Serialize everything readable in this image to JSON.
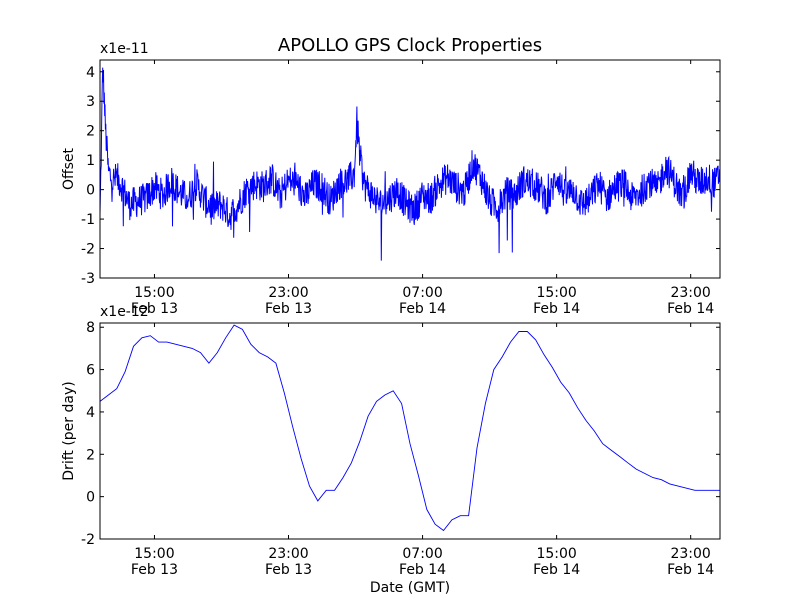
{
  "figure_title": "APOLLO GPS Clock Properties",
  "chart_data": [
    {
      "type": "line",
      "title": "APOLLO GPS Clock Properties",
      "ylabel": "Offset",
      "xlabel": "",
      "scale_note": "x1e-11",
      "xlim": [
        "Feb 13 11:45",
        "Feb 15 00:45"
      ],
      "ylim": [
        -3,
        4.4
      ],
      "yticks": [
        -3,
        -2,
        -1,
        0,
        1,
        2,
        3,
        4
      ],
      "yticklabels": [
        "-3",
        "-2",
        "-1",
        "0",
        "1",
        "2",
        "3",
        "4"
      ],
      "xticks": [
        {
          "time": "Feb 13 15:00",
          "label1": "15:00",
          "label2": "Feb 13"
        },
        {
          "time": "Feb 13 23:00",
          "label1": "23:00",
          "label2": "Feb 13"
        },
        {
          "time": "Feb 14 07:00",
          "label1": "07:00",
          "label2": "Feb 14"
        },
        {
          "time": "Feb 14 15:00",
          "label1": "15:00",
          "label2": "Feb 14"
        },
        {
          "time": "Feb 14 23:00",
          "label1": "23:00",
          "label2": "Feb 14"
        }
      ],
      "grid": false,
      "color": "#0000ff",
      "series": [
        {
          "x": [
            "Feb 13 11:45",
            "Feb 13 11:55",
            "Feb 13 12:05",
            "Feb 13 12:15",
            "Feb 13 12:30",
            "Feb 13 12:45",
            "Feb 13 13:00",
            "Feb 13 13:30",
            "Feb 13 14:00",
            "Feb 13 14:30",
            "Feb 13 15:00",
            "Feb 13 15:30",
            "Feb 13 16:00",
            "Feb 13 16:30",
            "Feb 13 17:00",
            "Feb 13 17:30",
            "Feb 13 18:00",
            "Feb 13 18:30",
            "Feb 13 19:00",
            "Feb 13 19:30",
            "Feb 13 20:00",
            "Feb 13 20:30",
            "Feb 13 21:00",
            "Feb 13 21:30",
            "Feb 13 22:00",
            "Feb 13 22:30",
            "Feb 13 23:00",
            "Feb 13 23:30",
            "Feb 14 00:00",
            "Feb 14 00:30",
            "Feb 14 01:00",
            "Feb 14 01:30",
            "Feb 14 02:00",
            "Feb 14 02:30",
            "Feb 14 02:55",
            "Feb 14 03:05",
            "Feb 14 03:15",
            "Feb 14 03:30",
            "Feb 14 04:00",
            "Feb 14 04:30",
            "Feb 14 05:00",
            "Feb 14 05:30",
            "Feb 14 06:00",
            "Feb 14 06:30",
            "Feb 14 07:00",
            "Feb 14 07:30",
            "Feb 14 08:00",
            "Feb 14 08:30",
            "Feb 14 09:00",
            "Feb 14 09:30",
            "Feb 14 10:00",
            "Feb 14 10:30",
            "Feb 14 11:00",
            "Feb 14 11:30",
            "Feb 14 12:00",
            "Feb 14 12:30",
            "Feb 14 13:00",
            "Feb 14 13:30",
            "Feb 14 14:00",
            "Feb 14 14:30",
            "Feb 14 15:00",
            "Feb 14 15:30",
            "Feb 14 16:00",
            "Feb 14 16:30",
            "Feb 14 17:00",
            "Feb 14 17:30",
            "Feb 14 18:00",
            "Feb 14 18:30",
            "Feb 14 19:00",
            "Feb 14 19:30",
            "Feb 14 20:00",
            "Feb 14 20:30",
            "Feb 14 21:00",
            "Feb 14 21:30",
            "Feb 14 22:00",
            "Feb 14 22:30",
            "Feb 14 23:00",
            "Feb 14 23:30",
            "Feb 15 00:00",
            "Feb 15 00:30",
            "Feb 15 00:45"
          ],
          "y": [
            -1.0,
            4.2,
            2.0,
            0.6,
            0.3,
            0.4,
            0.2,
            -0.5,
            -0.4,
            -0.3,
            0.1,
            -0.2,
            0.3,
            -0.1,
            -0.3,
            0.2,
            -0.4,
            -0.6,
            -0.5,
            -0.9,
            -0.5,
            0.0,
            0.2,
            0.1,
            0.4,
            -0.2,
            0.3,
            0.2,
            -0.3,
            0.2,
            0.1,
            -0.4,
            0.2,
            0.3,
            0.5,
            2.3,
            1.2,
            0.2,
            -0.2,
            -0.5,
            -0.3,
            0.0,
            -0.5,
            -0.7,
            -0.2,
            -0.3,
            0.2,
            0.4,
            0.1,
            -0.1,
            0.9,
            0.4,
            -0.4,
            -0.6,
            -0.1,
            -0.2,
            0.3,
            0.2,
            0.0,
            -0.4,
            0.5,
            -0.2,
            0.0,
            -0.5,
            -0.3,
            0.2,
            -0.3,
            0.1,
            0.2,
            -0.3,
            -0.1,
            0.3,
            0.0,
            0.8,
            0.3,
            -0.3,
            0.6,
            0.2,
            0.4,
            0.2,
            0.6
          ]
        }
      ]
    },
    {
      "type": "line",
      "title": "",
      "ylabel": "Drift (per day)",
      "xlabel": "Date (GMT)",
      "scale_note": "x1e-12",
      "xlim": [
        "Feb 13 11:45",
        "Feb 15 00:45"
      ],
      "ylim": [
        -2,
        8.2
      ],
      "yticks": [
        -2,
        0,
        2,
        4,
        6,
        8
      ],
      "yticklabels": [
        "-2",
        "0",
        "2",
        "4",
        "6",
        "8"
      ],
      "xticks": [
        {
          "time": "Feb 13 15:00",
          "label1": "15:00",
          "label2": "Feb 13"
        },
        {
          "time": "Feb 13 23:00",
          "label1": "23:00",
          "label2": "Feb 13"
        },
        {
          "time": "Feb 14 07:00",
          "label1": "07:00",
          "label2": "Feb 14"
        },
        {
          "time": "Feb 14 15:00",
          "label1": "15:00",
          "label2": "Feb 14"
        },
        {
          "time": "Feb 14 23:00",
          "label1": "23:00",
          "label2": "Feb 14"
        }
      ],
      "grid": false,
      "color": "#0000ff",
      "series": [
        {
          "x": [
            "Feb 13 11:45",
            "Feb 13 12:15",
            "Feb 13 12:45",
            "Feb 13 13:15",
            "Feb 13 13:45",
            "Feb 13 14:15",
            "Feb 13 14:45",
            "Feb 13 15:15",
            "Feb 13 15:45",
            "Feb 13 16:15",
            "Feb 13 16:45",
            "Feb 13 17:15",
            "Feb 13 17:45",
            "Feb 13 18:15",
            "Feb 13 18:45",
            "Feb 13 19:15",
            "Feb 13 19:45",
            "Feb 13 20:15",
            "Feb 13 20:45",
            "Feb 13 21:15",
            "Feb 13 21:45",
            "Feb 13 22:15",
            "Feb 13 22:45",
            "Feb 13 23:15",
            "Feb 13 23:45",
            "Feb 14 00:15",
            "Feb 14 00:45",
            "Feb 14 01:15",
            "Feb 14 01:45",
            "Feb 14 02:15",
            "Feb 14 02:45",
            "Feb 14 03:15",
            "Feb 14 03:45",
            "Feb 14 04:15",
            "Feb 14 04:45",
            "Feb 14 05:15",
            "Feb 14 05:45",
            "Feb 14 06:15",
            "Feb 14 06:45",
            "Feb 14 07:15",
            "Feb 14 07:45",
            "Feb 14 08:15",
            "Feb 14 08:45",
            "Feb 14 09:15",
            "Feb 14 09:45",
            "Feb 14 10:15",
            "Feb 14 10:45",
            "Feb 14 11:15",
            "Feb 14 11:45",
            "Feb 14 12:15",
            "Feb 14 12:45",
            "Feb 14 13:15",
            "Feb 14 13:45",
            "Feb 14 14:15",
            "Feb 14 14:45",
            "Feb 14 15:15",
            "Feb 14 15:45",
            "Feb 14 16:15",
            "Feb 14 16:45",
            "Feb 14 17:15",
            "Feb 14 17:45",
            "Feb 14 18:15",
            "Feb 14 18:45",
            "Feb 14 19:15",
            "Feb 14 19:45",
            "Feb 14 20:15",
            "Feb 14 20:45",
            "Feb 14 21:15",
            "Feb 14 21:45",
            "Feb 14 22:15",
            "Feb 14 22:45",
            "Feb 14 23:15",
            "Feb 14 23:45",
            "Feb 15 00:15",
            "Feb 15 00:45"
          ],
          "y": [
            4.5,
            4.8,
            5.1,
            5.9,
            7.1,
            7.5,
            7.6,
            7.3,
            7.3,
            7.2,
            7.1,
            7.0,
            6.8,
            6.3,
            6.8,
            7.5,
            8.1,
            7.9,
            7.2,
            6.8,
            6.6,
            6.3,
            4.9,
            3.3,
            1.8,
            0.5,
            -0.2,
            0.3,
            0.3,
            0.9,
            1.6,
            2.6,
            3.8,
            4.5,
            4.8,
            5.0,
            4.4,
            2.5,
            1.0,
            -0.6,
            -1.3,
            -1.6,
            -1.1,
            -0.9,
            -0.9,
            2.3,
            4.4,
            6.0,
            6.6,
            7.3,
            7.8,
            7.8,
            7.4,
            6.7,
            6.1,
            5.4,
            4.9,
            4.2,
            3.6,
            3.1,
            2.5,
            2.2,
            1.9,
            1.6,
            1.3,
            1.1,
            0.9,
            0.8,
            0.6,
            0.5,
            0.4,
            0.3,
            0.3,
            0.3,
            0.3
          ]
        }
      ]
    }
  ]
}
